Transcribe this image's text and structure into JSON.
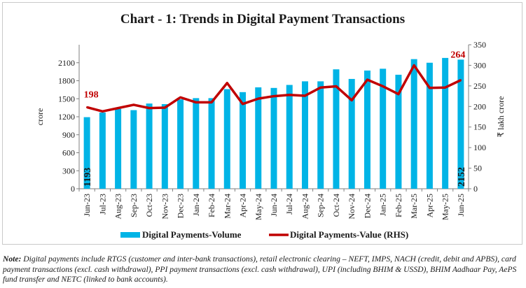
{
  "chart_data": {
    "type": "bar",
    "title": "Chart - 1: Trends in Digital Payment Transactions",
    "categories": [
      "Jun-23",
      "Jul-23",
      "Aug-23",
      "Sep-23",
      "Oct-23",
      "Nov-23",
      "Dec-23",
      "Jan-24",
      "Feb-24",
      "Mar-24",
      "Apr-24",
      "May-24",
      "Jun-24",
      "Jul-24",
      "Aug-24",
      "Sep-24",
      "Oct-24",
      "Nov-24",
      "Dec-24",
      "Jan-25",
      "Feb-25",
      "Mar-25",
      "Apr-25",
      "May-25",
      "Jun-25"
    ],
    "series": [
      {
        "name": "Digital Payments-Volume",
        "type": "bar",
        "axis": "left",
        "color": "#00b4e6",
        "values": [
          1193,
          1270,
          1330,
          1310,
          1420,
          1410,
          1490,
          1510,
          1510,
          1660,
          1610,
          1690,
          1680,
          1730,
          1790,
          1790,
          1990,
          1830,
          1970,
          2000,
          1900,
          2160,
          2100,
          2180,
          2152
        ]
      },
      {
        "name": "Digital Payments-Value (RHS)",
        "type": "line",
        "axis": "right",
        "color": "#c00000",
        "values": [
          198,
          188,
          196,
          204,
          196,
          197,
          222,
          210,
          210,
          257,
          206,
          219,
          225,
          228,
          226,
          246,
          249,
          215,
          265,
          249,
          230,
          300,
          245,
          246,
          264
        ]
      }
    ],
    "ylabel": "crore",
    "ylabel_right": "₹ lakh crore",
    "ylim": [
      0,
      2400
    ],
    "yticks": [
      "0",
      "300",
      "600",
      "900",
      "1200",
      "1500",
      "1800",
      "2100"
    ],
    "ylim_right": [
      0,
      350
    ],
    "yticks_right": [
      "0",
      "50",
      "100",
      "150",
      "200",
      "250",
      "300",
      "350"
    ],
    "annotations": {
      "first_volume": "1193",
      "last_volume": "2152",
      "first_value": "198",
      "last_value": "264"
    },
    "legend_position": "bottom",
    "grid": false
  },
  "note": {
    "label": "Note:",
    "text": " Digital payments include RTGS (customer and inter-bank transactions), retail electronic clearing – NEFT, IMPS, NACH (credit, debit and APBS), card payment transactions (excl. cash withdrawal), PPI payment transactions (excl. cash withdrawal), UPI (including BHIM & USSD), BHIM Aadhaar Pay, AePS fund transfer and NETC (linked to bank accounts)."
  }
}
